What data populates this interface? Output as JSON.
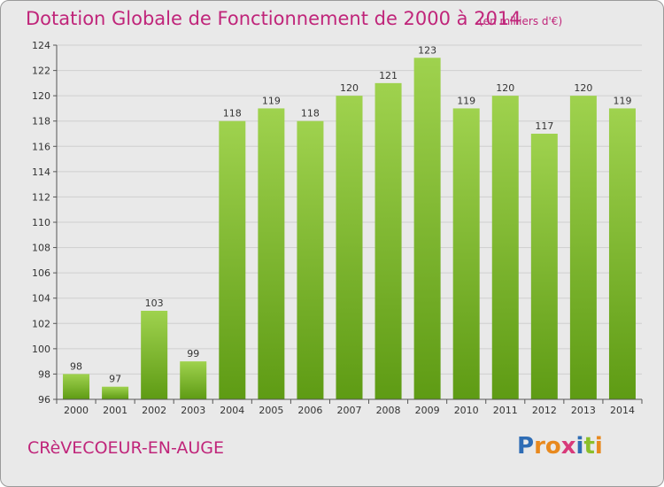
{
  "header": {
    "title": "Dotation Globale de Fonctionnement de 2000 à 2014",
    "subtitle": "(en milliers d'€)"
  },
  "footer": {
    "commune": "CRèVECOEUR-EN-AUGE",
    "logo": {
      "letters": [
        "P",
        "r",
        "o",
        "x",
        "i",
        "t",
        "i"
      ],
      "colors": [
        "#2f6db5",
        "#e8891e",
        "#e8891e",
        "#d83a7a",
        "#2f6db5",
        "#8bbf2a",
        "#e8891e"
      ]
    }
  },
  "chart_data": {
    "type": "bar",
    "categories": [
      "2000",
      "2001",
      "2002",
      "2003",
      "2004",
      "2005",
      "2006",
      "2007",
      "2008",
      "2009",
      "2010",
      "2011",
      "2012",
      "2013",
      "2014"
    ],
    "values": [
      98,
      97,
      103,
      99,
      118,
      119,
      118,
      120,
      121,
      123,
      119,
      120,
      117,
      120,
      119
    ],
    "ylim": [
      96,
      124
    ],
    "yticks": [
      96,
      98,
      100,
      102,
      104,
      106,
      108,
      110,
      112,
      114,
      116,
      118,
      120,
      122,
      124
    ],
    "grid": true,
    "bar_color_top": "#9fd24e",
    "bar_color_bottom": "#5e9b14"
  }
}
